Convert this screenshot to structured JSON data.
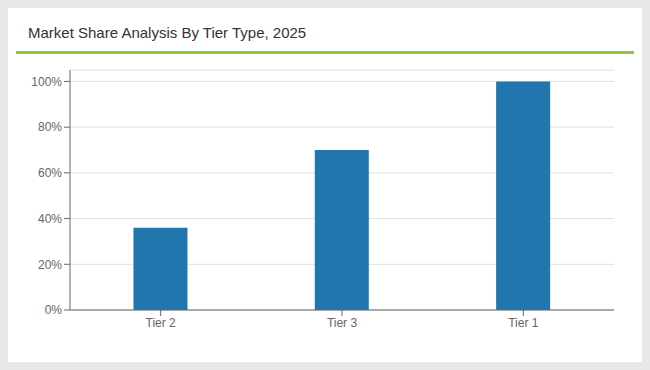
{
  "chart_data": {
    "type": "bar",
    "title": "Market Share Analysis By Tier Type, 2025",
    "categories": [
      "Tier 2",
      "Tier 3",
      "Tier 1"
    ],
    "values": [
      36,
      70,
      100
    ],
    "color": "#2176AE",
    "ylim": [
      0,
      105
    ],
    "yticks": [
      {
        "value": 0,
        "label": "0%"
      },
      {
        "value": 20,
        "label": "20%"
      },
      {
        "value": 40,
        "label": "40%"
      },
      {
        "value": 60,
        "label": "60%"
      },
      {
        "value": 80,
        "label": "80%"
      },
      {
        "value": 100,
        "label": "100%"
      }
    ],
    "grid": true
  }
}
